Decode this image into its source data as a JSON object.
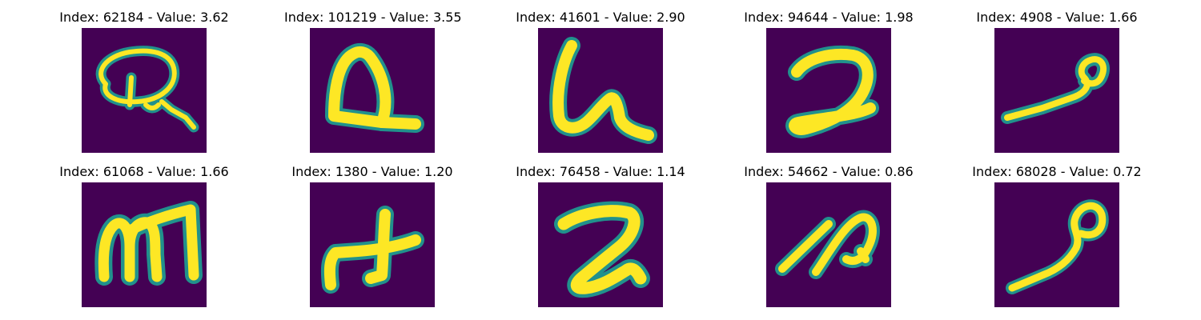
{
  "figure": {
    "background_color": "#440154",
    "stroke_core_color": "#fde725",
    "stroke_edge_color": "#21918c",
    "panels": [
      {
        "title": "Index: 62184 - Value: 3.62",
        "glyph": "looped-q-icon"
      },
      {
        "title": "Index: 101219 - Value: 3.55",
        "glyph": "a-with-tail-icon"
      },
      {
        "title": "Index: 41601 - Value: 2.90",
        "glyph": "script-h-icon"
      },
      {
        "title": "Index: 94644 - Value: 1.98",
        "glyph": "handwritten-2-icon"
      },
      {
        "title": "Index: 4908 - Value: 1.66",
        "glyph": "loop-stroke-icon"
      },
      {
        "title": "Index: 61068 - Value: 1.66",
        "glyph": "handwritten-m-icon"
      },
      {
        "title": "Index: 1380 - Value: 1.20",
        "glyph": "plus-cross-icon"
      },
      {
        "title": "Index: 76458 - Value: 1.14",
        "glyph": "handwritten-2-bold-icon"
      },
      {
        "title": "Index: 54662 - Value: 0.86",
        "glyph": "slanted-loop-icon"
      },
      {
        "title": "Index: 68028 - Value: 0.72",
        "glyph": "loop-tail-icon"
      }
    ]
  }
}
